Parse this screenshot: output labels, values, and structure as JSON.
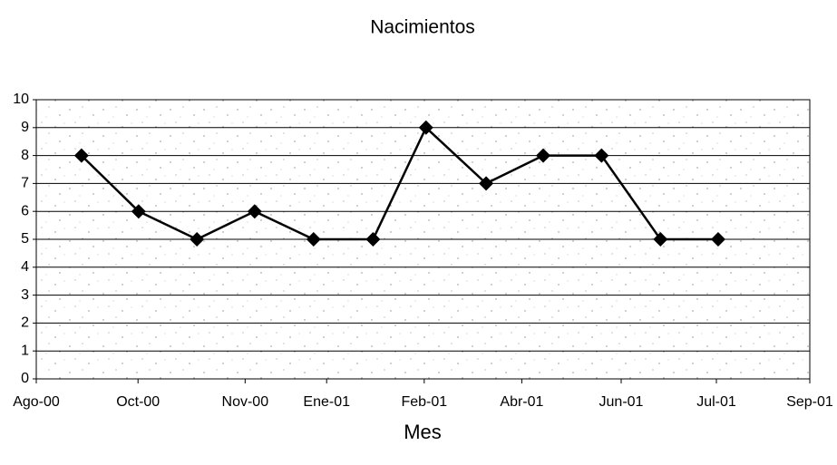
{
  "chart_data": {
    "type": "line",
    "title": "Nacimientos",
    "x_label": "Mes",
    "x": [
      0.76,
      1.72,
      2.7,
      3.67,
      4.66,
      5.66,
      6.55,
      7.56,
      8.52,
      9.5,
      10.49,
      11.46
    ],
    "series": [
      {
        "name": "Nacimientos",
        "color": "#000000",
        "values": [
          8,
          6,
          5,
          6,
          5,
          5,
          9,
          7,
          8,
          8,
          5,
          5
        ]
      }
    ],
    "xlim": [
      0,
      13
    ],
    "xticks": [
      {
        "value": 0,
        "label": "Ago-00"
      },
      {
        "value": 1.71,
        "label": "Oct-00"
      },
      {
        "value": 3.51,
        "label": "Nov-00"
      },
      {
        "value": 4.88,
        "label": "Ene-01"
      },
      {
        "value": 6.52,
        "label": "Feb-01"
      },
      {
        "value": 8.16,
        "label": "Abr-01"
      },
      {
        "value": 9.83,
        "label": "Jun-01"
      },
      {
        "value": 11.43,
        "label": "Jul-01"
      },
      {
        "value": 13,
        "label": "Sep-01"
      }
    ],
    "ylim": [
      0,
      10
    ],
    "yticks": [
      0,
      1,
      2,
      3,
      4,
      5,
      6,
      7,
      8,
      9,
      10
    ],
    "grid": true
  }
}
